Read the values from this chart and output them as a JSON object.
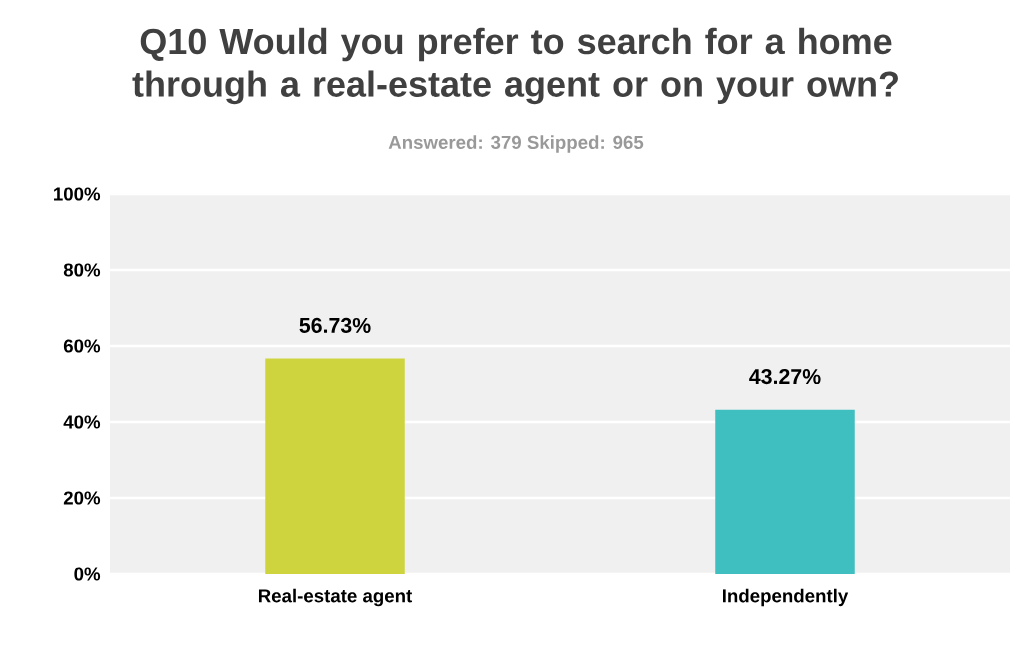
{
  "chart_data": {
    "type": "bar",
    "title": "Q10 Would you prefer to search for a home through a real-estate agent or on your own?",
    "subtitle": "Answered: 379    Skipped: 965",
    "categories": [
      "Real-estate agent",
      "Independently"
    ],
    "values": [
      56.73,
      43.27
    ],
    "value_labels": [
      "56.73%",
      "43.27%"
    ],
    "colors": [
      "#cdd43e",
      "#3fbfbf"
    ],
    "ylim": [
      0,
      100
    ],
    "yticks": [
      {
        "value": 0,
        "label": "0%"
      },
      {
        "value": 20,
        "label": "20%"
      },
      {
        "value": 40,
        "label": "40%"
      },
      {
        "value": 60,
        "label": "60%"
      },
      {
        "value": 80,
        "label": "80%"
      },
      {
        "value": 100,
        "label": "100%"
      }
    ],
    "grid": "y"
  }
}
